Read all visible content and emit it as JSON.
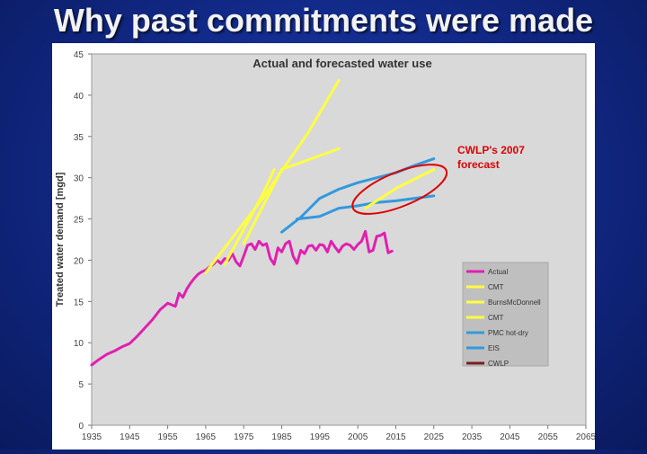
{
  "slide_title": "Why past commitments were made",
  "chart_data": {
    "type": "line",
    "title": "Actual and forecasted water use",
    "xlabel": "",
    "ylabel": "Treated water demand [mgd]",
    "xlim": [
      1935,
      2065
    ],
    "ylim": [
      0,
      45
    ],
    "x_ticks": [
      1935,
      1945,
      1955,
      1965,
      1975,
      1985,
      1995,
      2005,
      2015,
      2025,
      2035,
      2045,
      2055,
      2065
    ],
    "y_ticks": [
      0,
      5,
      10,
      15,
      20,
      25,
      30,
      35,
      40,
      45
    ],
    "grid": false,
    "legend_position": "right",
    "annotation": {
      "text_line1": "CWLP's 2007",
      "text_line2": " forecast",
      "color": "#e00000"
    },
    "series": [
      {
        "name": "Actual",
        "color": "#e020b0",
        "x": [
          1935,
          1937,
          1939,
          1941,
          1943,
          1945,
          1947,
          1949,
          1951,
          1953,
          1955,
          1957,
          1958,
          1959,
          1960,
          1961,
          1962,
          1963,
          1964,
          1965,
          1966,
          1967,
          1968,
          1969,
          1970,
          1971,
          1972,
          1973,
          1974,
          1975,
          1976,
          1977,
          1978,
          1979,
          1980,
          1981,
          1982,
          1983,
          1984,
          1985,
          1986,
          1987,
          1988,
          1989,
          1990,
          1991,
          1992,
          1993,
          1994,
          1995,
          1996,
          1997,
          1998,
          1999,
          2000,
          2001,
          2002,
          2003,
          2004,
          2005,
          2006,
          2007,
          2008,
          2009,
          2010,
          2011,
          2012,
          2013,
          2014
        ],
        "y": [
          7.3,
          8.0,
          8.6,
          9.0,
          9.5,
          9.9,
          10.8,
          11.8,
          12.8,
          14.0,
          14.8,
          14.4,
          16.0,
          15.5,
          16.5,
          17.2,
          17.8,
          18.3,
          18.6,
          18.8,
          19.2,
          19.5,
          20.0,
          19.6,
          20.2,
          20.0,
          20.8,
          19.8,
          19.3,
          20.5,
          21.8,
          22.0,
          21.3,
          22.3,
          21.8,
          22.0,
          20.2,
          19.5,
          21.5,
          21.0,
          22.0,
          22.3,
          20.5,
          19.6,
          21.2,
          20.8,
          21.7,
          21.8,
          21.2,
          21.9,
          21.8,
          21.0,
          22.3,
          21.6,
          21.0,
          21.7,
          22.0,
          21.8,
          21.3,
          21.9,
          22.3,
          23.5,
          21.0,
          21.2,
          22.9,
          23.0,
          23.3,
          20.9,
          21.1
        ]
      },
      {
        "name": "CMT",
        "color": "#ffff40",
        "x": [
          1965,
          1980,
          1992,
          2000
        ],
        "y": [
          18.5,
          27.5,
          35.5,
          41.8
        ]
      },
      {
        "name": "BurnsMcDonnell",
        "color": "#ffff40",
        "x": [
          1975,
          1985,
          2000
        ],
        "y": [
          22.0,
          31.0,
          33.5
        ]
      },
      {
        "name": "CMT",
        "color": "#ffff40",
        "x": [
          1970,
          1980,
          1983
        ],
        "y": [
          19.5,
          28.0,
          31.0
        ]
      },
      {
        "name": "PMC hot-dry",
        "color": "#3399dd",
        "x": [
          1985,
          1990,
          1995,
          2000,
          2005,
          2010,
          2015,
          2020,
          2025
        ],
        "y": [
          23.4,
          25.2,
          27.5,
          28.6,
          29.4,
          30.0,
          30.6,
          31.5,
          32.3
        ]
      },
      {
        "name": "EIS",
        "color": "#3399dd",
        "x": [
          1989,
          1995,
          2000,
          2005,
          2010,
          2015,
          2020,
          2025
        ],
        "y": [
          25.0,
          25.3,
          26.3,
          26.6,
          27.0,
          27.2,
          27.5,
          27.8
        ]
      },
      {
        "name": "CWLP",
        "color": "#ffff40",
        "legend_color": "#7a2020",
        "x": [
          2007,
          2015,
          2025
        ],
        "y": [
          26.3,
          28.7,
          31.0
        ]
      }
    ]
  }
}
